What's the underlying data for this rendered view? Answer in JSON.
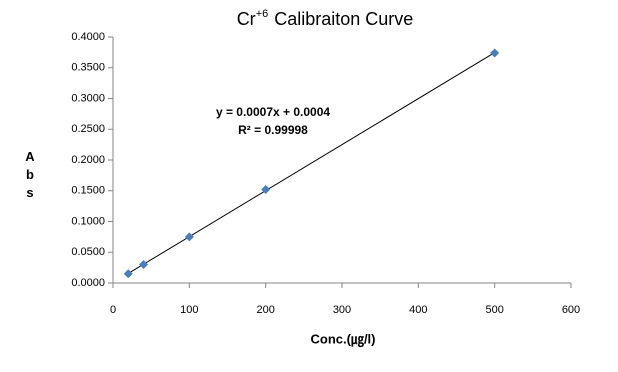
{
  "chart_data": {
    "type": "scatter",
    "title": [
      "Cr",
      "+6",
      "Calibraiton  Curve"
    ],
    "xlabel": "Conc.(㎍/l)",
    "ylabel": "Abs",
    "annotations": [
      "y = 0.0007x + 0.0004",
      "R² = 0.99998"
    ],
    "series": [
      {
        "color": "#4a7ebb",
        "x": [
          20,
          40,
          100,
          200,
          500
        ],
        "values": [
          0.015,
          0.03,
          0.075,
          0.152,
          0.374
        ]
      }
    ],
    "trendline": "linear",
    "xlim": [
      0,
      600
    ],
    "xticks": [
      0,
      100,
      200,
      300,
      400,
      500,
      600
    ],
    "ylim": [
      0,
      0.4
    ],
    "yticks": [
      {
        "value": 0,
        "label": "0.0000"
      },
      {
        "value": 0.05,
        "label": "0.0500"
      },
      {
        "value": 0.1,
        "label": "0.1000"
      },
      {
        "value": 0.15,
        "label": "0.1500"
      },
      {
        "value": 0.2,
        "label": "0.2000"
      },
      {
        "value": 0.25,
        "label": "0.2500"
      },
      {
        "value": 0.3,
        "label": "0.3000"
      },
      {
        "value": 0.35,
        "label": "0.3500"
      },
      {
        "value": 0.4,
        "label": "0.4000"
      }
    ]
  }
}
